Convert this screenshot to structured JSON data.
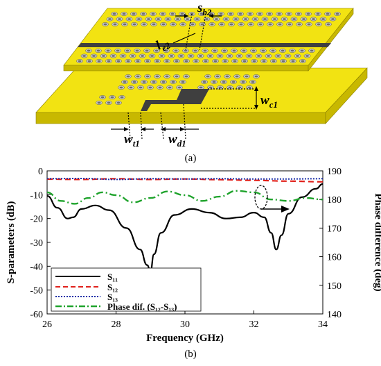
{
  "figure": {
    "caption_a": "(a)",
    "caption_b": "(b)",
    "dimension_labels": [
      {
        "main": "s",
        "sub": "b2"
      },
      {
        "main": "l",
        "sub": "e2"
      },
      {
        "main": "w",
        "sub": "c1"
      },
      {
        "main": "w",
        "sub": "t1"
      },
      {
        "main": "w",
        "sub": "d1"
      }
    ]
  },
  "colors": {
    "substrate": "#f2e312",
    "substrate_side": "#c8b800",
    "via": "#6f6f6f",
    "via_ring": "#c9c9c9",
    "line": "#3f3f3f",
    "s11": "#000000",
    "s12": "#e0201b",
    "s13": "#1b2fa8",
    "phase": "#1fa32c"
  },
  "chart_data": {
    "type": "line",
    "xlabel": "Frequency (GHz)",
    "ylabel": "S-parameters (dB)",
    "ylabel_right": "Phase difference (deg)",
    "xlim": [
      26,
      34
    ],
    "ylim": [
      -60,
      0
    ],
    "ylim_right": [
      140,
      190
    ],
    "x_ticks": [
      "26",
      "28",
      "30",
      "32",
      "34"
    ],
    "y_ticks": [
      "0",
      "-10",
      "-20",
      "-30",
      "-40",
      "-50",
      "-60"
    ],
    "y_right_ticks": [
      "190",
      "180",
      "170",
      "160",
      "150",
      "140"
    ],
    "legend_position": "bottom-left",
    "series": [
      {
        "name": "S₁₁",
        "axis": "left",
        "style": "solid",
        "x": [
          26.0,
          26.3,
          26.6,
          26.75,
          27.0,
          27.4,
          27.8,
          28.3,
          28.7,
          28.9,
          29.0,
          29.1,
          29.3,
          29.7,
          30.2,
          30.7,
          31.2,
          31.6,
          32.0,
          32.3,
          32.5,
          32.65,
          32.8,
          33.0,
          33.4,
          33.8,
          34.0
        ],
        "values": [
          -10.5,
          -15.5,
          -20.0,
          -19.5,
          -16.0,
          -14.5,
          -16.5,
          -24.0,
          -33.0,
          -39.5,
          -42.0,
          -35.0,
          -26.0,
          -18.5,
          -16.0,
          -17.5,
          -20.0,
          -19.5,
          -17.5,
          -19.5,
          -26.0,
          -33.0,
          -27.0,
          -18.0,
          -11.0,
          -7.5,
          -5.5
        ]
      },
      {
        "name": "S₁₂",
        "axis": "left",
        "style": "dashed",
        "x": [
          26.0,
          27.0,
          28.0,
          29.0,
          30.0,
          31.0,
          32.0,
          33.0,
          34.0
        ],
        "values": [
          -3.5,
          -3.6,
          -3.3,
          -3.6,
          -3.4,
          -3.7,
          -4.0,
          -4.3,
          -4.6
        ]
      },
      {
        "name": "S₁₃",
        "axis": "left",
        "style": "dotted",
        "x": [
          26.0,
          27.0,
          28.0,
          29.0,
          30.0,
          31.0,
          32.0,
          33.0,
          34.0
        ],
        "values": [
          -3.3,
          -3.2,
          -3.6,
          -3.3,
          -3.4,
          -3.3,
          -3.4,
          -3.4,
          -3.3
        ]
      },
      {
        "name": "Phase dif. (S₁₂-S₁₃)",
        "axis": "right",
        "style": "dashdot",
        "x": [
          26.0,
          26.4,
          26.8,
          27.2,
          27.6,
          28.0,
          28.5,
          29.0,
          29.5,
          30.0,
          30.5,
          31.0,
          31.5,
          32.0,
          32.5,
          33.0,
          33.5,
          34.0
        ],
        "values": [
          182.5,
          179.5,
          178.5,
          180.5,
          182.5,
          181.5,
          179.0,
          180.5,
          182.8,
          181.5,
          179.5,
          181.0,
          183.0,
          182.5,
          180.0,
          179.5,
          180.5,
          180.0
        ]
      }
    ],
    "annotation": "right-pointing arrow from dashed ellipse around phase curve near 32.3 GHz"
  }
}
